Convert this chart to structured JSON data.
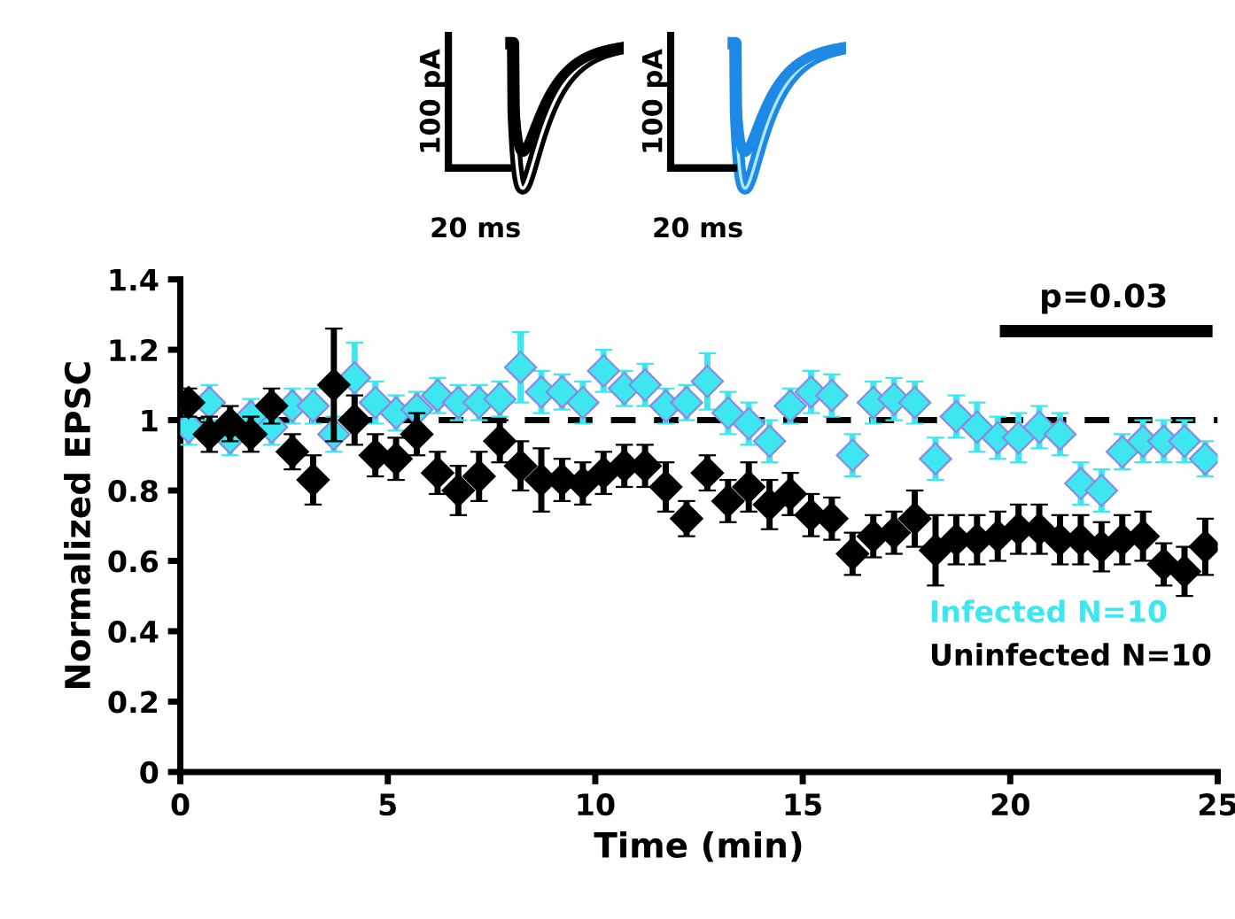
{
  "chart_data": {
    "type": "scatter",
    "xlabel": "Time (min)",
    "ylabel": "Normalized EPSC",
    "xlim": [
      0,
      25
    ],
    "xticks": [
      0,
      5,
      10,
      15,
      20,
      25
    ],
    "ylim": [
      0,
      1.4
    ],
    "yticks": [
      {
        "value": 0,
        "label": "0"
      },
      {
        "value": 0.2,
        "label": "0.2"
      },
      {
        "value": 0.4,
        "label": "0.4"
      },
      {
        "value": 0.6,
        "label": "0.6"
      },
      {
        "value": 0.8,
        "label": "0.8"
      },
      {
        "value": 1,
        "label": "1"
      },
      {
        "value": 1.2,
        "label": "1.2"
      },
      {
        "value": 1.4,
        "label": "1.4"
      }
    ],
    "x": [
      0.2,
      0.7,
      1.2,
      1.7,
      2.2,
      2.7,
      3.2,
      3.7,
      4.2,
      4.7,
      5.2,
      5.7,
      6.2,
      6.7,
      7.2,
      7.7,
      8.2,
      8.7,
      9.2,
      9.7,
      10.2,
      10.7,
      11.2,
      11.7,
      12.2,
      12.7,
      13.2,
      13.7,
      14.2,
      14.7,
      15.2,
      15.7,
      16.2,
      16.7,
      17.2,
      17.7,
      18.2,
      18.7,
      19.2,
      19.7,
      20.2,
      20.7,
      21.2,
      21.7,
      22.2,
      22.7,
      23.2,
      23.7,
      24.2,
      24.7
    ],
    "marker": "diamond",
    "grid": false,
    "legend": "right",
    "series": [
      {
        "name": "Infected N=10",
        "color": "#3ee6f0",
        "values": [
          0.98,
          1.05,
          0.95,
          1.01,
          0.98,
          1.04,
          1.04,
          0.96,
          1.12,
          1.05,
          1.02,
          1.03,
          1.07,
          1.05,
          1.05,
          1.06,
          1.15,
          1.08,
          1.08,
          1.05,
          1.14,
          1.09,
          1.1,
          1.04,
          1.05,
          1.11,
          1.02,
          0.99,
          0.94,
          1.04,
          1.08,
          1.07,
          0.9,
          1.05,
          1.06,
          1.05,
          0.89,
          1.01,
          0.98,
          0.95,
          0.95,
          0.98,
          0.96,
          0.82,
          0.8,
          0.91,
          0.94,
          0.94,
          0.94,
          0.89
        ],
        "errors": [
          0.05,
          0.05,
          0.05,
          0.05,
          0.05,
          0.05,
          0.05,
          0.05,
          0.1,
          0.06,
          0.05,
          0.05,
          0.05,
          0.05,
          0.05,
          0.05,
          0.1,
          0.06,
          0.05,
          0.06,
          0.06,
          0.05,
          0.06,
          0.05,
          0.05,
          0.08,
          0.06,
          0.06,
          0.06,
          0.05,
          0.06,
          0.06,
          0.06,
          0.06,
          0.06,
          0.06,
          0.06,
          0.06,
          0.07,
          0.06,
          0.07,
          0.06,
          0.06,
          0.06,
          0.06,
          0.05,
          0.06,
          0.06,
          0.06,
          0.05
        ]
      },
      {
        "name": "Uninfected N=10",
        "color": "#000000",
        "values": [
          1.05,
          0.96,
          0.99,
          0.96,
          1.04,
          0.91,
          0.83,
          1.1,
          1.0,
          0.9,
          0.89,
          0.96,
          0.85,
          0.8,
          0.84,
          0.94,
          0.87,
          0.83,
          0.83,
          0.82,
          0.85,
          0.87,
          0.87,
          0.81,
          0.72,
          0.85,
          0.77,
          0.81,
          0.76,
          0.79,
          0.73,
          0.72,
          0.62,
          0.67,
          0.68,
          0.72,
          0.63,
          0.66,
          0.66,
          0.67,
          0.69,
          0.69,
          0.66,
          0.66,
          0.64,
          0.66,
          0.67,
          0.59,
          0.57,
          0.64
        ],
        "errors": [
          0.04,
          0.05,
          0.05,
          0.05,
          0.05,
          0.05,
          0.07,
          0.16,
          0.07,
          0.06,
          0.06,
          0.06,
          0.06,
          0.07,
          0.07,
          0.06,
          0.07,
          0.09,
          0.06,
          0.06,
          0.06,
          0.06,
          0.06,
          0.07,
          0.05,
          0.05,
          0.06,
          0.07,
          0.07,
          0.06,
          0.06,
          0.06,
          0.06,
          0.06,
          0.06,
          0.08,
          0.1,
          0.07,
          0.07,
          0.07,
          0.07,
          0.07,
          0.07,
          0.07,
          0.07,
          0.07,
          0.07,
          0.06,
          0.07,
          0.08
        ]
      }
    ],
    "ref_lines": [
      {
        "axis": "y",
        "value": 1,
        "color": "#000000",
        "line_style": "dashed"
      }
    ],
    "annotations": [
      "p=0.03",
      "100 pA",
      "20 ms",
      "100 pA",
      "20 ms"
    ]
  }
}
